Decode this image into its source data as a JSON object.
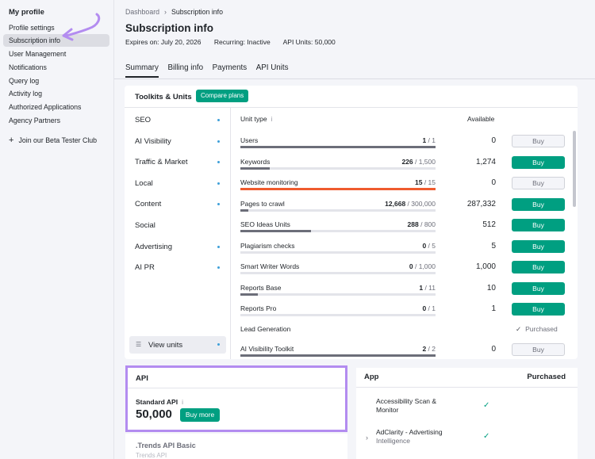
{
  "sidebar": {
    "heading": "My profile",
    "items": [
      {
        "label": "Profile settings"
      },
      {
        "label": "Subscription info"
      },
      {
        "label": "User Management"
      },
      {
        "label": "Notifications"
      },
      {
        "label": "Query log"
      },
      {
        "label": "Activity log"
      },
      {
        "label": "Authorized Applications"
      },
      {
        "label": "Agency Partners"
      }
    ],
    "beta": "Join our Beta Tester Club"
  },
  "breadcrumb": {
    "home": "Dashboard",
    "current": "Subscription info"
  },
  "page": {
    "title": "Subscription info",
    "expires": "Expires on: July 20, 2026",
    "recurring": "Recurring: Inactive",
    "api_units": "API Units: 50,000"
  },
  "tabs": [
    "Summary",
    "Billing info",
    "Payments",
    "API Units"
  ],
  "toolkits_panel": {
    "title": "Toolkits & Units",
    "compare_label": "Compare plans",
    "toolkits": [
      "SEO",
      "AI Visibility",
      "Traffic & Market",
      "Local",
      "Content",
      "Social",
      "Advertising",
      "AI PR"
    ],
    "view_units": "View units",
    "col_unit_type": "Unit type",
    "col_available": "Available",
    "units": [
      {
        "name": "Users",
        "used": "1",
        "total": "/ 1",
        "fraction": 1.0,
        "available": "0",
        "action": "Buy",
        "enabled": false
      },
      {
        "name": "Keywords",
        "used": "226",
        "total": "/ 1,500",
        "fraction": 0.15,
        "available": "1,274",
        "action": "Buy",
        "enabled": true
      },
      {
        "name": "Website monitoring",
        "used": "15",
        "total": "/ 15",
        "fraction": 1.0,
        "available": "0",
        "action": "Buy",
        "enabled": false,
        "alert": true
      },
      {
        "name": "Pages to crawl",
        "used": "12,668",
        "total": "/ 300,000",
        "fraction": 0.04,
        "available": "287,332",
        "action": "Buy",
        "enabled": true
      },
      {
        "name": "SEO Ideas Units",
        "used": "288",
        "total": "/ 800",
        "fraction": 0.36,
        "available": "512",
        "action": "Buy",
        "enabled": true
      },
      {
        "name": "Plagiarism checks",
        "used": "0",
        "total": "/ 5",
        "fraction": 0.0,
        "available": "5",
        "action": "Buy",
        "enabled": true
      },
      {
        "name": "Smart Writer Words",
        "used": "0",
        "total": "/ 1,000",
        "fraction": 0.0,
        "available": "1,000",
        "action": "Buy",
        "enabled": true
      },
      {
        "name": "Reports Base",
        "used": "1",
        "total": "/ 11",
        "fraction": 0.09,
        "available": "10",
        "action": "Buy",
        "enabled": true
      },
      {
        "name": "Reports Pro",
        "used": "0",
        "total": "/ 1",
        "fraction": 0.0,
        "available": "1",
        "action": "Buy",
        "enabled": true
      },
      {
        "name": "Lead Generation",
        "purchased": "Purchased"
      },
      {
        "name": "AI Visibility Toolkit",
        "used": "2",
        "total": "/ 2",
        "fraction": 1.0,
        "available": "0",
        "action": "Buy",
        "enabled": false
      }
    ]
  },
  "api_panel": {
    "title": "API",
    "standard_label": "Standard API",
    "standard_value": "50,000",
    "buy_more": "Buy more",
    "trends_label": ".Trends API Basic",
    "trends_sub": "Trends API"
  },
  "app_panel": {
    "title": "App",
    "purchased": "Purchased",
    "apps": [
      {
        "name": "Accessibility Scan &",
        "name2": "Monitor",
        "sub": ""
      },
      {
        "name": "AdClarity - Advertising",
        "name2": "",
        "sub": "Intelligence"
      }
    ]
  },
  "colors": {
    "accent": "#009f81",
    "highlight": "#b38cf0",
    "alert": "#ef5b2e"
  }
}
